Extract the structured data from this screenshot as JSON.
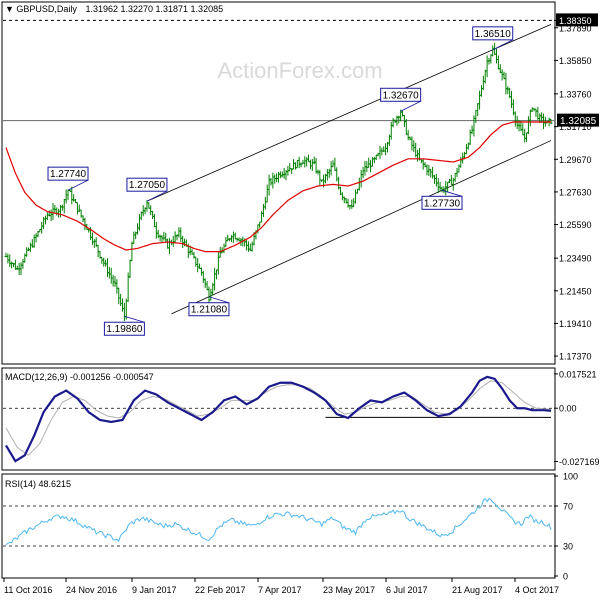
{
  "header": {
    "symbol": "GBPUSD,Daily",
    "ohlc": "1.31962 1.32270 1.31871 1.32085"
  },
  "watermark": "ActionForex.com",
  "colors": {
    "background": "#ffffff",
    "axis": "#000000",
    "candle": "#008000",
    "sma": "#e00000",
    "macd": "#1a1a8c",
    "signal": "#b0b0b0",
    "label_border": "#1a1aa0",
    "current_price_bg": "#000000",
    "current_price_text": "#ffffff"
  },
  "x_axis": {
    "labels": [
      "11 Oct 2016",
      "24 Nov 2016",
      "9 Jan 2017",
      "22 Feb 2017",
      "7 Apr 2017",
      "23 May 2017",
      "6 Jul 2017",
      "21 Aug 2017",
      "4 Oct 2017"
    ]
  },
  "chart_data": [
    {
      "type": "candlestick",
      "title": "GBPUSD,Daily 1.31962 1.32270 1.31871 1.32085",
      "ylim": [
        1.17,
        1.39
      ],
      "y_ticks": [
        "1.38350",
        "1.37890",
        "1.35850",
        "1.33760",
        "1.31710",
        "1.29670",
        "1.27630",
        "1.25590",
        "1.23490",
        "1.21450",
        "1.19410",
        "1.17370"
      ],
      "current_price": "1.32085",
      "resistance_level": 1.3835,
      "series_keypoints": [
        [
          0,
          1.236
        ],
        [
          6,
          1.228
        ],
        [
          14,
          1.244
        ],
        [
          22,
          1.262
        ],
        [
          29,
          1.266
        ],
        [
          33,
          1.2774
        ],
        [
          38,
          1.266
        ],
        [
          44,
          1.252
        ],
        [
          52,
          1.232
        ],
        [
          58,
          1.218
        ],
        [
          63,
          1.1986
        ],
        [
          67,
          1.244
        ],
        [
          72,
          1.262
        ],
        [
          75,
          1.2705
        ],
        [
          80,
          1.252
        ],
        [
          86,
          1.243
        ],
        [
          92,
          1.25
        ],
        [
          98,
          1.238
        ],
        [
          104,
          1.226
        ],
        [
          108,
          1.2108
        ],
        [
          114,
          1.238
        ],
        [
          120,
          1.25
        ],
        [
          126,
          1.246
        ],
        [
          130,
          1.24
        ],
        [
          136,
          1.262
        ],
        [
          140,
          1.282
        ],
        [
          146,
          1.288
        ],
        [
          152,
          1.292
        ],
        [
          158,
          1.296
        ],
        [
          164,
          1.293
        ],
        [
          168,
          1.282
        ],
        [
          174,
          1.293
        ],
        [
          178,
          1.276
        ],
        [
          184,
          1.266
        ],
        [
          190,
          1.29
        ],
        [
          196,
          1.296
        ],
        [
          202,
          1.305
        ],
        [
          206,
          1.32
        ],
        [
          210,
          1.3267
        ],
        [
          214,
          1.31
        ],
        [
          220,
          1.296
        ],
        [
          226,
          1.288
        ],
        [
          232,
          1.2773
        ],
        [
          238,
          1.284
        ],
        [
          243,
          1.298
        ],
        [
          248,
          1.315
        ],
        [
          252,
          1.336
        ],
        [
          256,
          1.358
        ],
        [
          259,
          1.3651
        ],
        [
          263,
          1.352
        ],
        [
          268,
          1.336
        ],
        [
          272,
          1.318
        ],
        [
          276,
          1.31
        ],
        [
          280,
          1.33
        ],
        [
          284,
          1.322
        ],
        [
          288,
          1.319
        ],
        [
          290,
          1.32085
        ]
      ],
      "sma_keypoints": [
        [
          0,
          1.304
        ],
        [
          5,
          1.288
        ],
        [
          10,
          1.276
        ],
        [
          16,
          1.268
        ],
        [
          22,
          1.264
        ],
        [
          30,
          1.262
        ],
        [
          38,
          1.258
        ],
        [
          46,
          1.252
        ],
        [
          52,
          1.247
        ],
        [
          58,
          1.243
        ],
        [
          64,
          1.24
        ],
        [
          70,
          1.241
        ],
        [
          78,
          1.244
        ],
        [
          86,
          1.245
        ],
        [
          94,
          1.244
        ],
        [
          100,
          1.241
        ],
        [
          106,
          1.239
        ],
        [
          114,
          1.239
        ],
        [
          122,
          1.243
        ],
        [
          130,
          1.248
        ],
        [
          136,
          1.254
        ],
        [
          142,
          1.262
        ],
        [
          150,
          1.271
        ],
        [
          158,
          1.277
        ],
        [
          166,
          1.28
        ],
        [
          174,
          1.281
        ],
        [
          182,
          1.28
        ],
        [
          190,
          1.283
        ],
        [
          198,
          1.288
        ],
        [
          206,
          1.293
        ],
        [
          214,
          1.297
        ],
        [
          222,
          1.297
        ],
        [
          230,
          1.296
        ],
        [
          238,
          1.295
        ],
        [
          246,
          1.298
        ],
        [
          252,
          1.304
        ],
        [
          258,
          1.312
        ],
        [
          264,
          1.318
        ],
        [
          270,
          1.32
        ],
        [
          276,
          1.32
        ],
        [
          282,
          1.32
        ],
        [
          290,
          1.32
        ]
      ],
      "channel": {
        "upper": [
          [
            75,
            1.2705
          ],
          [
            259,
            1.3651
          ]
        ],
        "lower": [
          [
            108,
            1.2108
          ],
          [
            232,
            1.2773
          ]
        ]
      },
      "annotations": [
        {
          "label": "1.27740",
          "bar": 33,
          "price": 1.2774,
          "position": "above"
        },
        {
          "label": "1.19860",
          "bar": 63,
          "price": 1.1986,
          "position": "below"
        },
        {
          "label": "1.27050",
          "bar": 75,
          "price": 1.2705,
          "position": "above"
        },
        {
          "label": "1.21080",
          "bar": 108,
          "price": 1.2108,
          "position": "below"
        },
        {
          "label": "1.32670",
          "bar": 210,
          "price": 1.3267,
          "position": "above"
        },
        {
          "label": "1.27730",
          "bar": 232,
          "price": 1.2773,
          "position": "below"
        },
        {
          "label": "1.36510",
          "bar": 259,
          "price": 1.3651,
          "position": "above"
        }
      ]
    },
    {
      "type": "line",
      "title": "MACD(12,26,9) -0.001256 -0.000547",
      "ylim": [
        -0.0305,
        0.0195
      ],
      "y_ticks": [
        "0.017521",
        "0.00",
        "-0.027169"
      ],
      "support_line": {
        "from_bar": 170,
        "to_bar": 290,
        "value": -0.0047
      },
      "series": [
        {
          "name": "MACD",
          "keypoints": [
            [
              0,
              -0.019
            ],
            [
              5,
              -0.027
            ],
            [
              10,
              -0.024
            ],
            [
              15,
              -0.014
            ],
            [
              20,
              -0.002
            ],
            [
              26,
              0.006
            ],
            [
              32,
              0.009
            ],
            [
              38,
              0.005
            ],
            [
              44,
              -0.002
            ],
            [
              50,
              -0.006
            ],
            [
              56,
              -0.007
            ],
            [
              62,
              -0.006
            ],
            [
              68,
              0.004
            ],
            [
              74,
              0.009
            ],
            [
              80,
              0.007
            ],
            [
              86,
              0.003
            ],
            [
              92,
              0.0
            ],
            [
              98,
              -0.003
            ],
            [
              104,
              -0.006
            ],
            [
              110,
              -0.002
            ],
            [
              116,
              0.004
            ],
            [
              122,
              0.006
            ],
            [
              128,
              0.002
            ],
            [
              134,
              0.005
            ],
            [
              140,
              0.011
            ],
            [
              146,
              0.013
            ],
            [
              152,
              0.013
            ],
            [
              158,
              0.011
            ],
            [
              164,
              0.008
            ],
            [
              170,
              0.004
            ],
            [
              176,
              -0.003
            ],
            [
              182,
              -0.005
            ],
            [
              188,
              0.0
            ],
            [
              194,
              0.004
            ],
            [
              200,
              0.003
            ],
            [
              206,
              0.006
            ],
            [
              212,
              0.008
            ],
            [
              218,
              0.004
            ],
            [
              224,
              -0.001
            ],
            [
              230,
              -0.004
            ],
            [
              236,
              -0.003
            ],
            [
              242,
              0.001
            ],
            [
              248,
              0.008
            ],
            [
              252,
              0.014
            ],
            [
              256,
              0.016
            ],
            [
              260,
              0.015
            ],
            [
              264,
              0.01
            ],
            [
              268,
              0.004
            ],
            [
              272,
              0.0
            ],
            [
              276,
              0.0
            ],
            [
              280,
              -0.001
            ],
            [
              286,
              -0.001
            ],
            [
              290,
              -0.0013
            ]
          ]
        },
        {
          "name": "Signal",
          "keypoints": [
            [
              0,
              -0.01
            ],
            [
              6,
              -0.02
            ],
            [
              12,
              -0.024
            ],
            [
              18,
              -0.018
            ],
            [
              24,
              -0.006
            ],
            [
              30,
              0.003
            ],
            [
              36,
              0.006
            ],
            [
              42,
              0.004
            ],
            [
              48,
              -0.001
            ],
            [
              54,
              -0.004
            ],
            [
              60,
              -0.005
            ],
            [
              66,
              -0.002
            ],
            [
              72,
              0.004
            ],
            [
              78,
              0.006
            ],
            [
              84,
              0.005
            ],
            [
              90,
              0.002
            ],
            [
              96,
              -0.001
            ],
            [
              102,
              -0.004
            ],
            [
              108,
              -0.003
            ],
            [
              114,
              0.0
            ],
            [
              120,
              0.004
            ],
            [
              126,
              0.004
            ],
            [
              132,
              0.004
            ],
            [
              138,
              0.008
            ],
            [
              144,
              0.011
            ],
            [
              150,
              0.012
            ],
            [
              156,
              0.012
            ],
            [
              162,
              0.01
            ],
            [
              168,
              0.006
            ],
            [
              174,
              0.001
            ],
            [
              180,
              -0.003
            ],
            [
              186,
              -0.002
            ],
            [
              192,
              0.001
            ],
            [
              198,
              0.003
            ],
            [
              204,
              0.004
            ],
            [
              210,
              0.006
            ],
            [
              216,
              0.006
            ],
            [
              222,
              0.002
            ],
            [
              228,
              -0.002
            ],
            [
              234,
              -0.003
            ],
            [
              240,
              -0.001
            ],
            [
              246,
              0.004
            ],
            [
              252,
              0.01
            ],
            [
              258,
              0.014
            ],
            [
              264,
              0.013
            ],
            [
              270,
              0.008
            ],
            [
              276,
              0.003
            ],
            [
              282,
              0.0
            ],
            [
              290,
              -0.0005
            ]
          ]
        }
      ]
    },
    {
      "type": "line",
      "title": "RSI(14) 48.6215",
      "ylim": [
        0,
        100
      ],
      "y_ticks": [
        "100",
        "70",
        "30",
        "0"
      ],
      "levels": [
        70,
        30
      ],
      "series": [
        {
          "name": "RSI",
          "keypoints": [
            [
              0,
              30
            ],
            [
              6,
              38
            ],
            [
              12,
              46
            ],
            [
              18,
              52
            ],
            [
              24,
              58
            ],
            [
              30,
              60
            ],
            [
              36,
              56
            ],
            [
              42,
              50
            ],
            [
              48,
              44
            ],
            [
              54,
              40
            ],
            [
              60,
              36
            ],
            [
              66,
              52
            ],
            [
              72,
              58
            ],
            [
              78,
              54
            ],
            [
              84,
              50
            ],
            [
              90,
              52
            ],
            [
              96,
              47
            ],
            [
              102,
              42
            ],
            [
              108,
              37
            ],
            [
              114,
              50
            ],
            [
              120,
              56
            ],
            [
              126,
              52
            ],
            [
              132,
              50
            ],
            [
              138,
              58
            ],
            [
              144,
              62
            ],
            [
              150,
              62
            ],
            [
              156,
              60
            ],
            [
              162,
              56
            ],
            [
              168,
              52
            ],
            [
              174,
              58
            ],
            [
              180,
              48
            ],
            [
              186,
              44
            ],
            [
              192,
              58
            ],
            [
              198,
              60
            ],
            [
              204,
              62
            ],
            [
              210,
              66
            ],
            [
              214,
              58
            ],
            [
              220,
              52
            ],
            [
              226,
              46
            ],
            [
              232,
              40
            ],
            [
              238,
              46
            ],
            [
              244,
              56
            ],
            [
              250,
              66
            ],
            [
              254,
              74
            ],
            [
              258,
              78
            ],
            [
              262,
              70
            ],
            [
              266,
              62
            ],
            [
              270,
              55
            ],
            [
              274,
              52
            ],
            [
              278,
              60
            ],
            [
              282,
              55
            ],
            [
              286,
              54
            ],
            [
              290,
              48.6
            ]
          ]
        }
      ]
    }
  ]
}
